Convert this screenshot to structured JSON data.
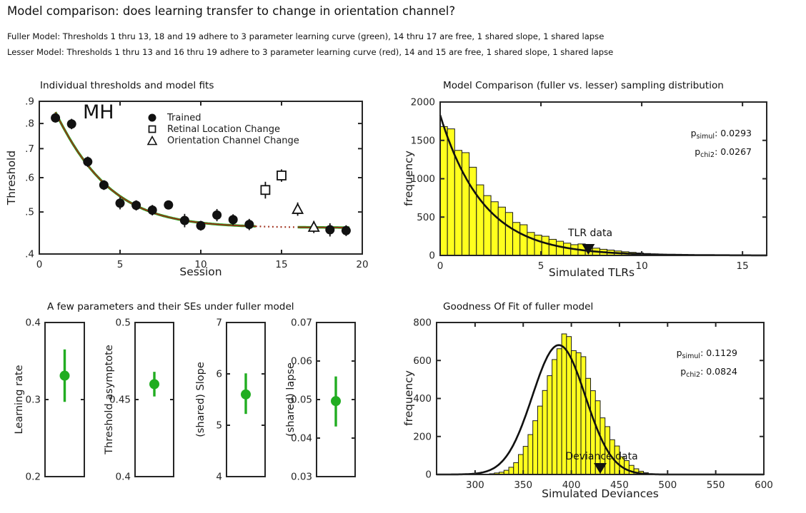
{
  "header": {
    "title": "Model comparison: does learning transfer to change in orientation channel?",
    "subtitle_fuller": "Fuller Model: Thresholds 1 thru 13, 18 and 19 adhere to 3 parameter learning curve (green), 14 thru 17 are free, 1 shared slope, 1 shared lapse",
    "subtitle_lesser": "Lesser Model: Thresholds 1 thru 13 and 16 thru 19 adhere to 3 parameter learning curve (red), 14 and 15 are free, 1 shared slope, 1 shared lapse"
  },
  "colors": {
    "axis": "#262626",
    "text": "#1a1a1a",
    "histogram_fill": "#ffff1e",
    "histogram_edge": "#1a1a1a",
    "fuller_green": "#1fa81f",
    "lesser_red": "#9e2a16",
    "marker_black": "#111111",
    "param_green": "#21ad21"
  },
  "chart_data": [
    {
      "type": "scatter",
      "title": "Individual thresholds and model fits",
      "xlabel": "Session",
      "ylabel": "Threshold",
      "observer": "MH",
      "xlim": [
        0,
        20
      ],
      "xticks": [
        0,
        5,
        10,
        15,
        20
      ],
      "yscale": "log",
      "ylim": [
        0.4,
        0.9
      ],
      "yticks": [
        {
          "v": 0.4,
          "label": ".4"
        },
        {
          "v": 0.5,
          "label": ".5"
        },
        {
          "v": 0.6,
          "label": ".6"
        },
        {
          "v": 0.7,
          "label": ".7"
        },
        {
          "v": 0.8,
          "label": ".8"
        },
        {
          "v": 0.9,
          "label": ".9"
        }
      ],
      "series": [
        {
          "name": "Trained",
          "marker": "filled-circle",
          "points": [
            {
              "x": 1,
              "y": 0.824,
              "e": 0.02
            },
            {
              "x": 2,
              "y": 0.798,
              "e": 0.022
            },
            {
              "x": 3,
              "y": 0.653,
              "e": 0.018
            },
            {
              "x": 4,
              "y": 0.577,
              "e": 0.015
            },
            {
              "x": 5,
              "y": 0.524,
              "e": 0.017
            },
            {
              "x": 6,
              "y": 0.518,
              "e": 0.014
            },
            {
              "x": 7,
              "y": 0.505,
              "e": 0.014
            },
            {
              "x": 8,
              "y": 0.519,
              "e": 0.012
            },
            {
              "x": 9,
              "y": 0.478,
              "e": 0.017
            },
            {
              "x": 10,
              "y": 0.465,
              "e": 0.012
            },
            {
              "x": 11,
              "y": 0.492,
              "e": 0.016
            },
            {
              "x": 12,
              "y": 0.48,
              "e": 0.014
            },
            {
              "x": 13,
              "y": 0.468,
              "e": 0.014
            },
            {
              "x": 18,
              "y": 0.455,
              "e": 0.016
            },
            {
              "x": 19,
              "y": 0.453,
              "e": 0.013
            }
          ]
        },
        {
          "name": "Retinal Location Change",
          "marker": "open-square",
          "points": [
            {
              "x": 14,
              "y": 0.562,
              "e": 0.025
            },
            {
              "x": 15,
              "y": 0.607,
              "e": 0.02
            }
          ]
        },
        {
          "name": "Orientation Channel Change",
          "marker": "open-triangle",
          "points": [
            {
              "x": 16,
              "y": 0.508,
              "e": 0.018
            },
            {
              "x": 17,
              "y": 0.462,
              "e": 0.015
            }
          ]
        }
      ],
      "fit_curve": {
        "formula": "threshold = asymptote + amplitude * exp(-(session-1)/tau)",
        "asymptote": 0.46,
        "amplitude": 0.39,
        "tau": 2.6,
        "solid_ranges": [
          [
            1,
            13.4
          ],
          [
            16,
            19.2
          ]
        ],
        "dotted_range": [
          13.4,
          16
        ]
      }
    },
    {
      "type": "histogram",
      "title": "Model Comparison (fuller vs. lesser) sampling distribution",
      "xlabel": "Simulated TLRs",
      "ylabel": "frequency",
      "xlim": [
        0,
        16.2
      ],
      "xticks": [
        0,
        5,
        10,
        15
      ],
      "ylim": [
        0,
        2000
      ],
      "yticks": [
        0,
        500,
        1000,
        1500,
        2000
      ],
      "bin_start": 0,
      "bin_width": 0.36,
      "frequencies": [
        1680,
        1650,
        1370,
        1340,
        1150,
        920,
        780,
        700,
        630,
        560,
        430,
        400,
        300,
        265,
        250,
        210,
        185,
        160,
        140,
        150,
        105,
        95,
        80,
        70,
        58,
        48,
        40,
        32,
        25,
        20
      ],
      "curve": {
        "shape": "exponential",
        "peak": 1830,
        "tau": 2.15
      },
      "marker": {
        "label": "TLR data",
        "value": 7.35
      },
      "p_values": [
        {
          "base": "p",
          "sub": "simul",
          "rest": ": 0.0293"
        },
        {
          "base": "p",
          "sub": "chi2",
          "rest": ": 0.0267"
        }
      ]
    },
    {
      "type": "param-panels",
      "title": "A few parameters and their SEs under fuller model",
      "panels": [
        {
          "label": "Learning rate",
          "ylim": [
            0.2,
            0.4
          ],
          "yticks": [
            {
              "v": 0.2,
              "label": "0.2"
            },
            {
              "v": 0.3,
              "label": "0.3"
            },
            {
              "v": 0.4,
              "label": "0.4"
            }
          ],
          "value": 0.331,
          "err_lo": 0.297,
          "err_hi": 0.365
        },
        {
          "label": "Threshold asymptote",
          "ylim": [
            0.4,
            0.5
          ],
          "yticks": [
            {
              "v": 0.4,
              "label": "0.4"
            },
            {
              "v": 0.45,
              "label": "0.45"
            },
            {
              "v": 0.5,
              "label": "0.5"
            }
          ],
          "value": 0.46,
          "err_lo": 0.452,
          "err_hi": 0.468
        },
        {
          "label": "(shared) Slope",
          "ylim": [
            4,
            7
          ],
          "yticks": [
            {
              "v": 4,
              "label": "4"
            },
            {
              "v": 5,
              "label": "5"
            },
            {
              "v": 6,
              "label": "6"
            },
            {
              "v": 7,
              "label": "7"
            }
          ],
          "value": 5.6,
          "err_lo": 5.22,
          "err_hi": 6.01
        },
        {
          "label": "(shared) lapse",
          "ylim": [
            0.03,
            0.07
          ],
          "yticks": [
            {
              "v": 0.03,
              "label": "0.03"
            },
            {
              "v": 0.04,
              "label": "0.04"
            },
            {
              "v": 0.05,
              "label": "0.05"
            },
            {
              "v": 0.06,
              "label": "0.06"
            },
            {
              "v": 0.07,
              "label": "0.07"
            }
          ],
          "value": 0.0496,
          "err_lo": 0.043,
          "err_hi": 0.056
        }
      ]
    },
    {
      "type": "histogram",
      "title": "Goodness Of Fit of fuller model",
      "xlabel": "Simulated Deviances",
      "ylabel": "frequency",
      "xlim": [
        260,
        600
      ],
      "xticks": [
        300,
        350,
        400,
        450,
        500,
        550,
        600
      ],
      "ylim": [
        0,
        800
      ],
      "yticks": [
        0,
        200,
        400,
        600,
        800
      ],
      "bin_start": 310,
      "bin_width": 5,
      "frequencies": [
        2,
        4,
        8,
        12,
        22,
        38,
        62,
        105,
        148,
        210,
        283,
        360,
        442,
        520,
        605,
        662,
        740,
        726,
        652,
        641,
        620,
        506,
        441,
        388,
        298,
        252,
        183,
        150,
        93,
        73,
        48,
        30,
        17,
        9,
        4
      ],
      "curve": {
        "shape": "gaussian",
        "peak": 681,
        "mu": 387,
        "sigma": 27.5
      },
      "marker": {
        "label": "Deviance data",
        "value": 430
      },
      "p_values": [
        {
          "base": "p",
          "sub": "simul",
          "rest": ": 0.1129"
        },
        {
          "base": "p",
          "sub": "chi2",
          "rest": ": 0.0824"
        }
      ]
    }
  ]
}
